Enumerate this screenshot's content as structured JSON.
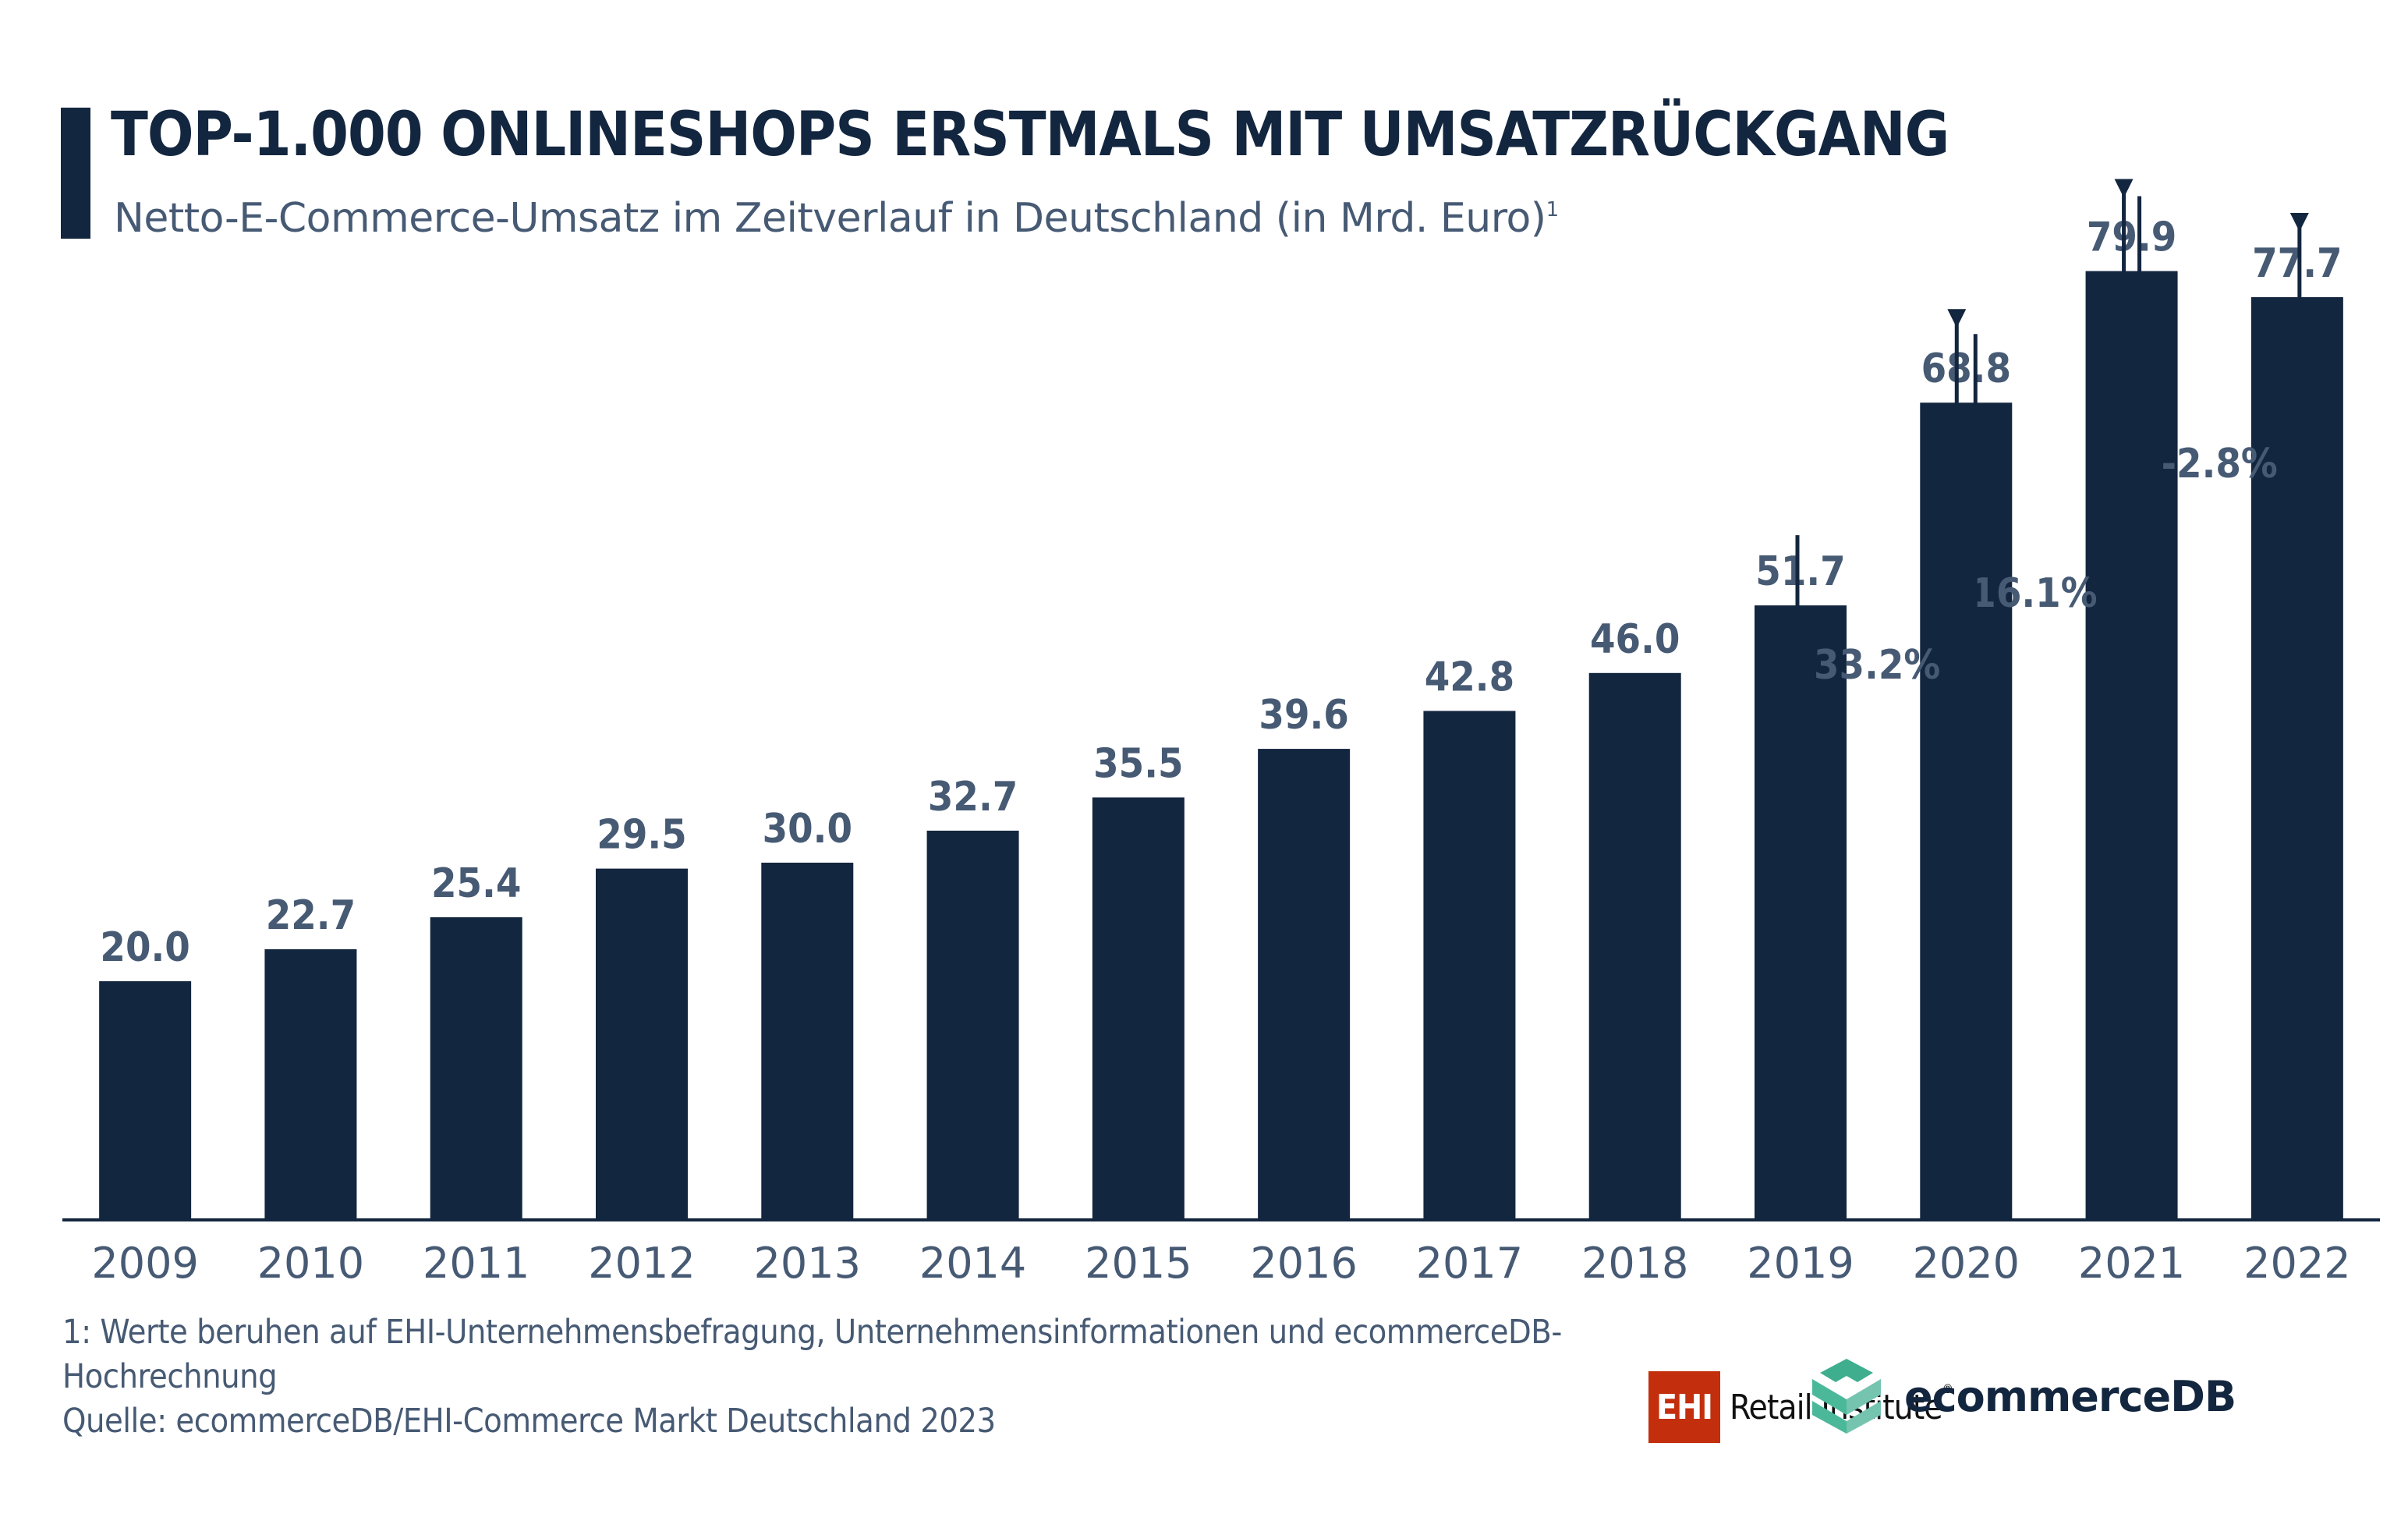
{
  "header": {
    "title": "TOP-1.000 ONLINESHOPS ERSTMALS MIT UMSATZRÜCKGANG",
    "subtitle": "Netto-E-Commerce-Umsatz im Zeitverlauf in Deutschland (in Mrd. Euro)",
    "subtitle_footnote_marker": "1"
  },
  "colors": {
    "bar": "#13263f",
    "label_text": "#475a74",
    "title_text": "#13263f",
    "ehi_red": "#c32f0d",
    "ecommercedb_green": "#4cb89a"
  },
  "chart_data": {
    "type": "bar",
    "title": "TOP-1.000 ONLINESHOPS ERSTMALS MIT UMSATZRÜCKGANG",
    "subtitle": "Netto-E-Commerce-Umsatz im Zeitverlauf in Deutschland (in Mrd. Euro)",
    "xlabel": "",
    "ylabel": "",
    "categories": [
      "2009",
      "2010",
      "2011",
      "2012",
      "2013",
      "2014",
      "2015",
      "2016",
      "2017",
      "2018",
      "2019",
      "2020",
      "2021",
      "2022"
    ],
    "values": [
      20.0,
      22.7,
      25.4,
      29.5,
      30.0,
      32.7,
      35.5,
      39.6,
      42.8,
      46.0,
      51.7,
      68.8,
      79.9,
      77.7
    ],
    "value_labels": [
      "20.0",
      "22.7",
      "25.4",
      "29.5",
      "30.0",
      "32.7",
      "35.5",
      "39.6",
      "42.8",
      "46.0",
      "51.7",
      "68.8",
      "79.9",
      "77.7"
    ],
    "ylim": [
      0,
      100
    ],
    "grid": false,
    "y_axis_visible": false,
    "annotations": [
      {
        "from": "2019",
        "to": "2020",
        "label": "33.2%"
      },
      {
        "from": "2020",
        "to": "2021",
        "label": "16.1%"
      },
      {
        "from": "2021",
        "to": "2022",
        "label": "-2.8%"
      }
    ]
  },
  "footer": {
    "note_line1": "1: Werte beruhen auf EHI-Unternehmensbefragung, Unternehmensinformationen und ecommerceDB-",
    "note_line2": "Hochrechnung",
    "source": "Quelle: ecommerceDB/EHI-Commerce Markt Deutschland 2023"
  },
  "logos": {
    "ehi_box": "EHI",
    "ehi_text": "Retail Institute",
    "ehi_reg": "®",
    "ecommercedb": "ecommerceDB"
  }
}
